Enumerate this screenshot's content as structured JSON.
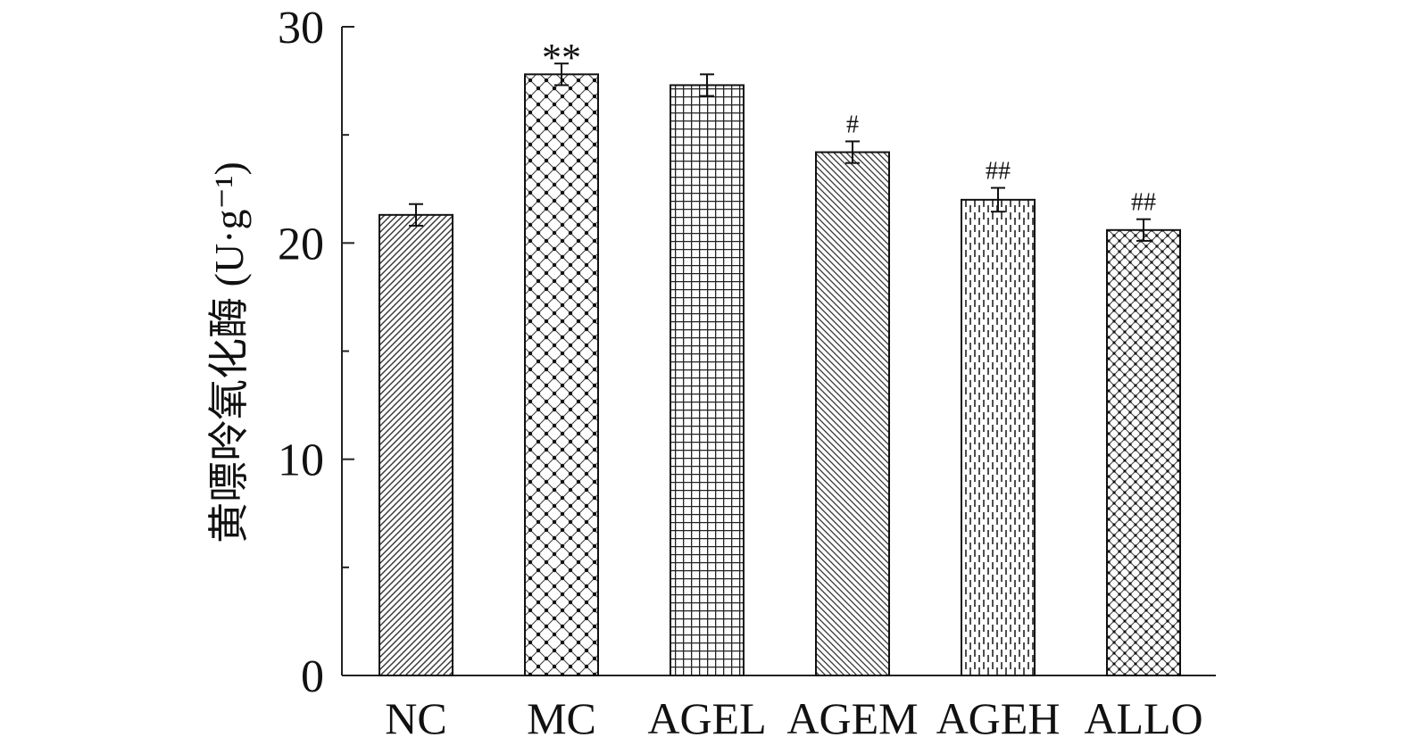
{
  "chart_data": {
    "type": "bar",
    "title": "",
    "xlabel": "",
    "ylabel": "黄嘌呤氧化酶 (U·g⁻¹)",
    "ylim": [
      0,
      30
    ],
    "yticks": [
      0,
      10,
      20,
      30
    ],
    "grid": false,
    "categories": [
      "NC",
      "MC",
      "AGEL",
      "AGEM",
      "AGEH",
      "ALLO"
    ],
    "values": [
      21.3,
      27.8,
      27.3,
      24.2,
      22.0,
      20.6
    ],
    "errors": [
      0.5,
      0.5,
      0.5,
      0.5,
      0.55,
      0.5
    ],
    "annotations": [
      "",
      "**",
      "",
      "#",
      "##",
      "##"
    ],
    "patterns": [
      "diag-fine",
      "diamond-dot",
      "grid",
      "diag-back",
      "vdash",
      "diamond-dot-fine"
    ]
  }
}
